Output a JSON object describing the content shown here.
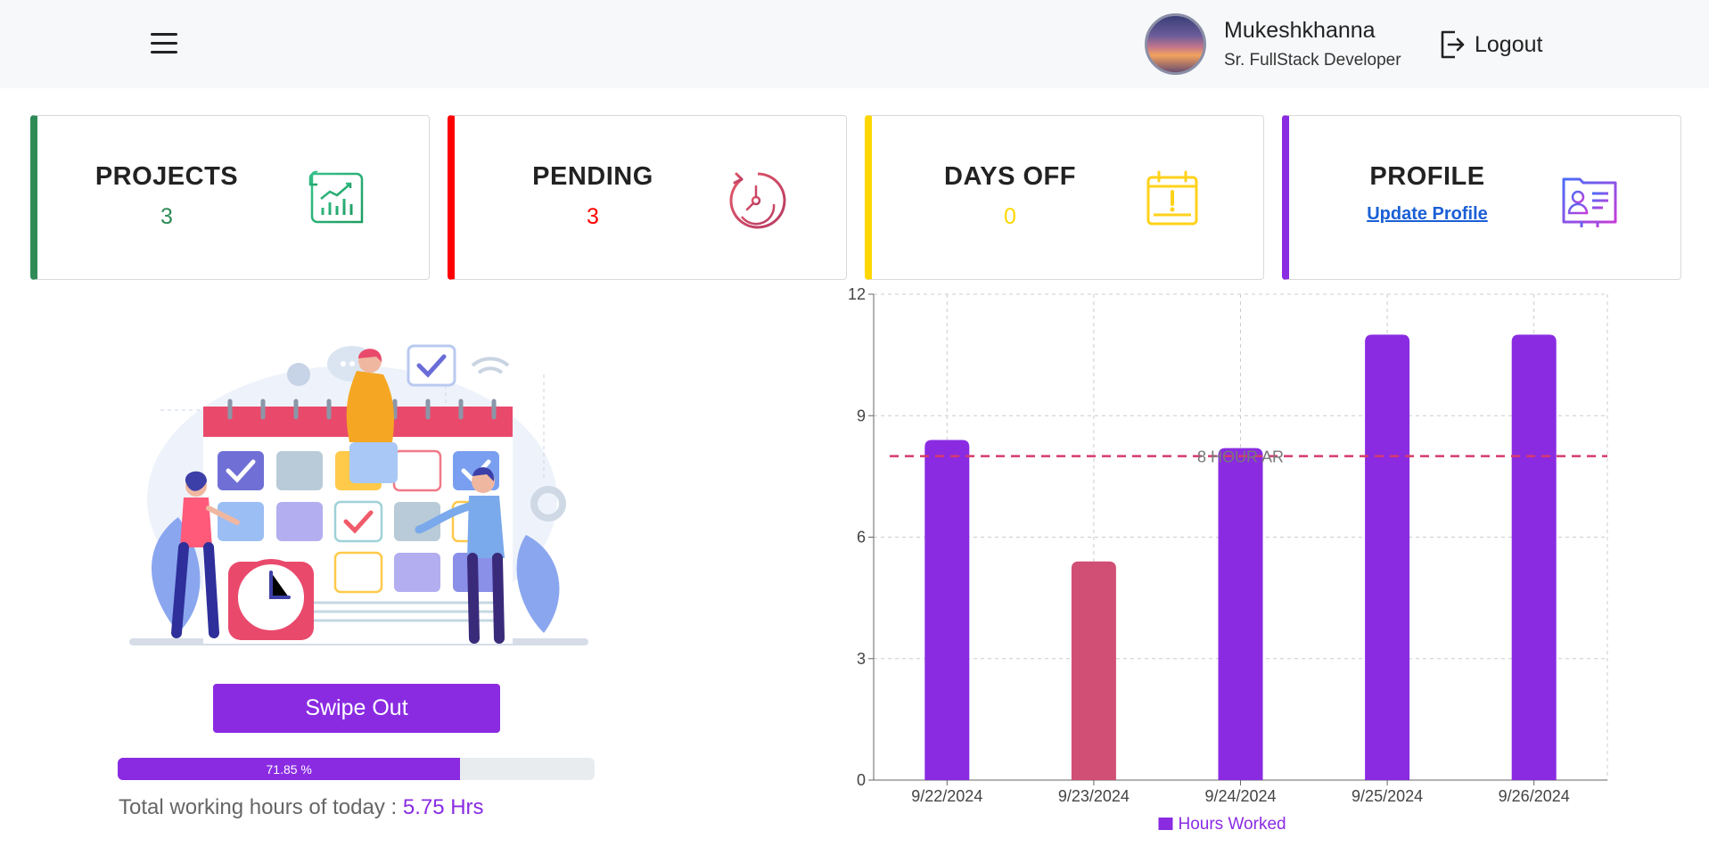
{
  "header": {
    "menu_icon": "hamburger-icon",
    "user": {
      "name": "Mukeshkhanna",
      "role": "Sr. FullStack Developer"
    },
    "logout_label": "Logout",
    "logout_icon": "logout-icon"
  },
  "cards": [
    {
      "title": "PROJECTS",
      "value": "3",
      "color": "#2e8b57",
      "icon": "chart-document-icon"
    },
    {
      "title": "PENDING",
      "value": "3",
      "color": "#ff0000",
      "icon": "timer-icon"
    },
    {
      "title": "DAYS OFF",
      "value": "0",
      "color": "#ffd700",
      "icon": "calendar-alert-icon"
    },
    {
      "title": "PROFILE",
      "link": "Update Profile",
      "color": "#8a2be2",
      "icon": "id-card-icon"
    }
  ],
  "attendance": {
    "swipe_label": "Swipe Out",
    "progress_percent": 71.85,
    "progress_label": "71.85 %",
    "total_label": "Total working hours of today : ",
    "total_value": "5.75 Hrs"
  },
  "chart_data": {
    "type": "bar",
    "categories": [
      "9/22/2024",
      "9/23/2024",
      "9/24/2024",
      "9/25/2024",
      "9/26/2024"
    ],
    "series": [
      {
        "name": "Hours Worked",
        "values": [
          8.4,
          5.4,
          8.2,
          11,
          11
        ],
        "colors": [
          "#8a2be2",
          "#d14e74",
          "#8a2be2",
          "#8a2be2",
          "#8a2be2"
        ]
      }
    ],
    "ylim": [
      0,
      12
    ],
    "yticks": [
      0,
      3,
      6,
      9,
      12
    ],
    "reference_line": {
      "value": 8,
      "label": "8 HOUR AR",
      "color": "#d63b6b"
    },
    "grid": true,
    "legend": "bottom"
  }
}
